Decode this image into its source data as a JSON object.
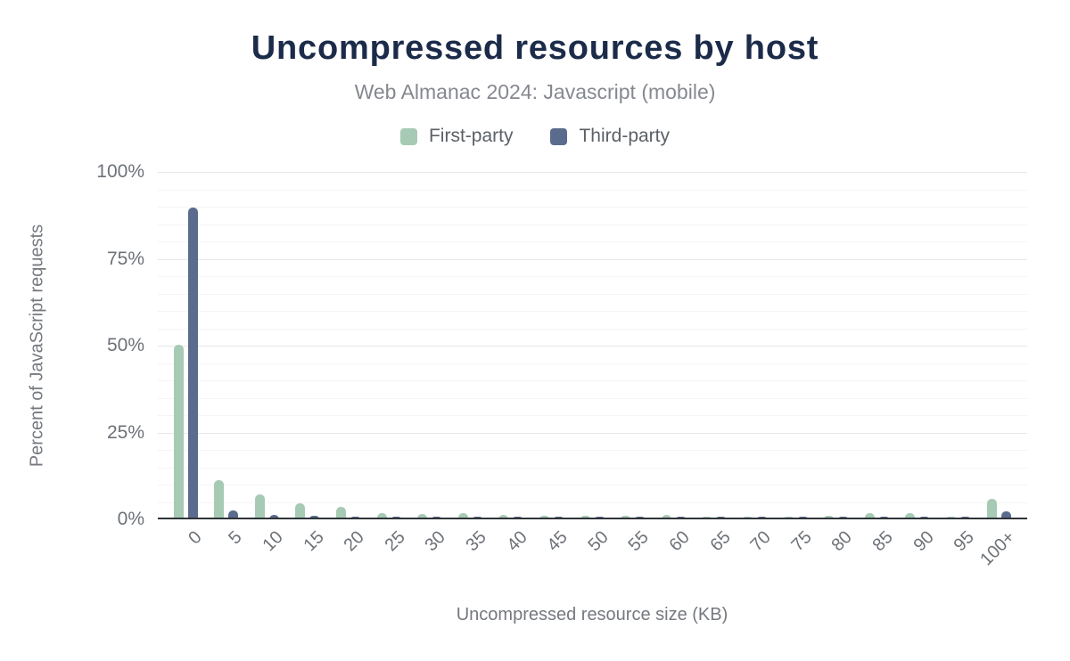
{
  "header": {
    "title": "Uncompressed resources by host",
    "subtitle": "Web Almanac 2024: Javascript (mobile)"
  },
  "legend": [
    {
      "label": "First-party",
      "color": "#a7cab4"
    },
    {
      "label": "Third-party",
      "color": "#5a6b8d"
    }
  ],
  "colors": {
    "title": "#1b2b49",
    "subtitle": "#85898f",
    "axis_text": "#6d7278",
    "grid_minor": "#f4f4f4",
    "grid_major": "#e7e7e7",
    "axis_line": "#2e3338",
    "first_party": "#a7cab4",
    "third_party": "#5a6b8d"
  },
  "chart_data": {
    "type": "bar",
    "title": "Uncompressed resources by host",
    "subtitle": "Web Almanac 2024: Javascript (mobile)",
    "xlabel": "Uncompressed resource size (KB)",
    "ylabel": "Percent of JavaScript requests",
    "ylim": [
      0,
      100
    ],
    "yticks": [
      0,
      25,
      50,
      75,
      100
    ],
    "ytick_labels": [
      "0%",
      "25%",
      "50%",
      "75%",
      "100%"
    ],
    "minor_grid_step_percent": 5,
    "grid": true,
    "legend_position": "top",
    "categories": [
      "0",
      "5",
      "10",
      "15",
      "20",
      "25",
      "30",
      "35",
      "40",
      "45",
      "50",
      "55",
      "60",
      "65",
      "70",
      "75",
      "80",
      "85",
      "90",
      "95",
      "100+"
    ],
    "series": [
      {
        "name": "First-party",
        "color": "#a7cab4",
        "values": [
          50.3,
          11.2,
          7.3,
          4.7,
          3.6,
          1.8,
          1.5,
          1.8,
          1.2,
          1.0,
          1.1,
          1.1,
          1.2,
          0.9,
          0.4,
          0.3,
          1.0,
          1.7,
          1.8,
          0.3,
          6.0
        ]
      },
      {
        "name": "Third-party",
        "color": "#5a6b8d",
        "values": [
          89.7,
          2.7,
          1.2,
          1.0,
          0.7,
          0.5,
          0.3,
          0.6,
          0.4,
          0.5,
          0.5,
          0.5,
          0.5,
          0.5,
          0.3,
          0.3,
          0.4,
          0.5,
          0.4,
          0.6,
          2.4
        ]
      }
    ]
  }
}
